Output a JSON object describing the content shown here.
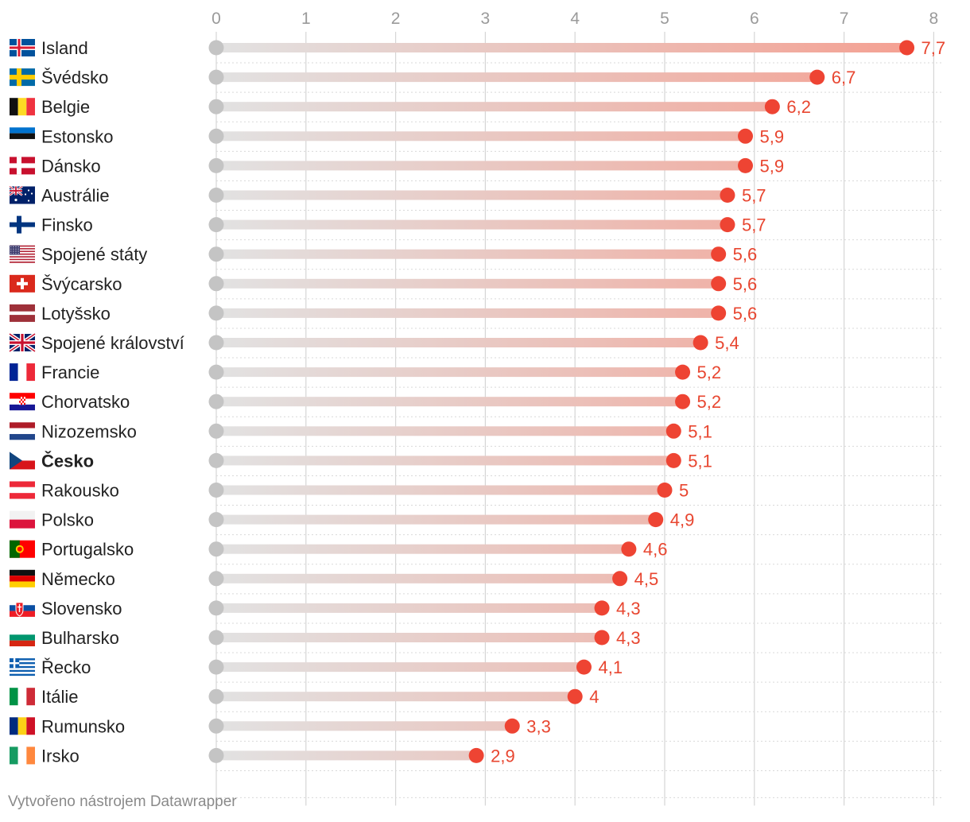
{
  "footer": {
    "credit": "Vytvořeno nástrojem Datawrapper"
  },
  "colors": {
    "dot_end": "#ee4433",
    "dot_start": "#c4c4c4",
    "value_label": "#e84630",
    "bar_start": "#e2e2e2",
    "bar_end": "#f4a193",
    "grid": "#d6d6d6",
    "axis_tick": "#9a9a9a"
  },
  "chart_data": {
    "type": "dot-range",
    "title": "",
    "xlabel": "",
    "ylabel": "",
    "xlim": [
      0,
      8
    ],
    "x_ticks": [
      0,
      1,
      2,
      3,
      4,
      5,
      6,
      7,
      8
    ],
    "x_tick_labels": [
      "0",
      "1",
      "2",
      "3",
      "4",
      "5",
      "6",
      "7",
      "8"
    ],
    "grid": true,
    "start_value": 0,
    "highlighted_category": "Česko",
    "categories": [
      "Island",
      "Švédsko",
      "Belgie",
      "Estonsko",
      "Dánsko",
      "Austrálie",
      "Finsko",
      "Spojené státy",
      "Švýcarsko",
      "Lotyšsko",
      "Spojené království",
      "Francie",
      "Chorvatsko",
      "Nizozemsko",
      "Česko",
      "Rakousko",
      "Polsko",
      "Portugalsko",
      "Německo",
      "Slovensko",
      "Bulharsko",
      "Řecko",
      "Itálie",
      "Rumunsko",
      "Irsko"
    ],
    "values": [
      7.7,
      6.7,
      6.2,
      5.9,
      5.9,
      5.7,
      5.7,
      5.6,
      5.6,
      5.6,
      5.4,
      5.2,
      5.2,
      5.1,
      5.1,
      5.0,
      4.9,
      4.6,
      4.5,
      4.3,
      4.3,
      4.1,
      4.0,
      3.3,
      2.9
    ],
    "value_labels": [
      "7,7",
      "6,7",
      "6,2",
      "5,9",
      "5,9",
      "5,7",
      "5,7",
      "5,6",
      "5,6",
      "5,6",
      "5,4",
      "5,2",
      "5,2",
      "5,1",
      "5,1",
      "5",
      "4,9",
      "4,6",
      "4,5",
      "4,3",
      "4,3",
      "4,1",
      "4",
      "3,3",
      "2,9"
    ],
    "flags": [
      "iceland-flag",
      "sweden-flag",
      "belgium-flag",
      "estonia-flag",
      "denmark-flag",
      "australia-flag",
      "finland-flag",
      "usa-flag",
      "switzerland-flag",
      "latvia-flag",
      "uk-flag",
      "france-flag",
      "croatia-flag",
      "netherlands-flag",
      "czechia-flag",
      "austria-flag",
      "poland-flag",
      "portugal-flag",
      "germany-flag",
      "slovakia-flag",
      "bulgaria-flag",
      "greece-flag",
      "italy-flag",
      "romania-flag",
      "ireland-flag"
    ]
  }
}
